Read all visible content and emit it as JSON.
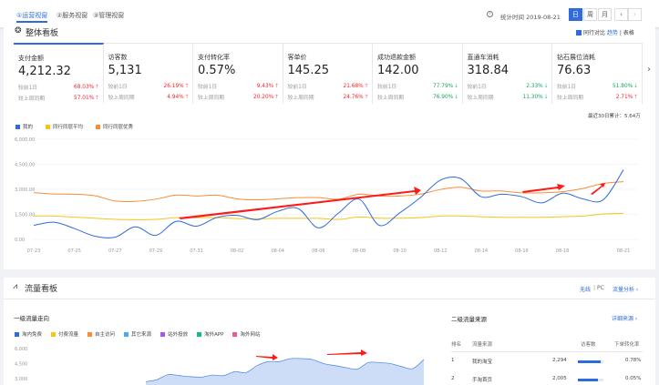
{
  "header": {
    "tabs": [
      "①运营视窗",
      "②服务视窗",
      "③管理视窗"
    ],
    "help_icon": "question-circle-icon",
    "stat_time_label": "统计时间 2019-08-21",
    "period_buttons": [
      "日",
      "周",
      "月"
    ],
    "prev": "‹",
    "next": "›"
  },
  "overview": {
    "title": "整体看板",
    "compare_label": "同行对比",
    "view_trend": "趋势",
    "view_table": "表格",
    "compare_day": "较前1日",
    "compare_week": "较上周同期",
    "metrics": [
      {
        "label": "支付金额",
        "value": "4,212.32",
        "day": "68.03%",
        "day_dir": "up",
        "week": "57.01%",
        "week_dir": "up"
      },
      {
        "label": "访客数",
        "value": "5,131",
        "day": "26.19%",
        "day_dir": "up",
        "week": "4.94%",
        "week_dir": "up"
      },
      {
        "label": "支付转化率",
        "value": "0.57%",
        "day": "9.43%",
        "day_dir": "up",
        "week": "20.20%",
        "week_dir": "up"
      },
      {
        "label": "客单价",
        "value": "145.25",
        "day": "21.68%",
        "day_dir": "up",
        "week": "24.76%",
        "week_dir": "up"
      },
      {
        "label": "成功退款金额",
        "value": "142.00",
        "day": "77.79%",
        "day_dir": "down",
        "week": "76.90%",
        "week_dir": "down"
      },
      {
        "label": "直通车消耗",
        "value": "318.84",
        "day": "2.33%",
        "day_dir": "down",
        "week": "11.30%",
        "week_dir": "down"
      },
      {
        "label": "钻石展位消耗",
        "value": "76.63",
        "day": "51.80%",
        "day_dir": "down",
        "week": "2.71%",
        "week_dir": "up"
      }
    ],
    "total_30d": "最近30日累计：5.64万"
  },
  "colors": {
    "accent": "#2f6bdc",
    "up": "#f5222d",
    "down": "#19a55a",
    "mine": "#2f6bdc",
    "avg": "#f5c518",
    "top": "#fa8c35",
    "annotation": "#ff1a1a"
  },
  "chart_data": [
    {
      "type": "line",
      "legend_placement": "top-left",
      "grid": true,
      "ylim": [
        0,
        6000
      ],
      "yticks": [
        "0.00",
        "1,500.00",
        "3,000.00",
        "4,500.00",
        "6,000.00"
      ],
      "ytick_values": [
        0,
        1500,
        3000,
        4500,
        6000
      ],
      "x": [
        "07-23",
        "07-24",
        "07-25",
        "07-26",
        "07-27",
        "07-28",
        "07-29",
        "07-30",
        "07-31",
        "08-01",
        "08-02",
        "08-03",
        "08-04",
        "08-05",
        "08-06",
        "08-07",
        "08-08",
        "08-09",
        "08-10",
        "08-11",
        "08-12",
        "08-13",
        "08-14",
        "08-15",
        "08-16",
        "08-17",
        "08-18",
        "08-19",
        "08-20",
        "08-21"
      ],
      "xticks": [
        "07-23",
        "07-25",
        "07-27",
        "07-29",
        "07-31",
        "08-02",
        "08-04",
        "08-06",
        "08-08",
        "08-10",
        "08-12",
        "08-14",
        "08-16",
        "08-18",
        "08-21"
      ],
      "series": [
        {
          "name": "我的",
          "color": "#2f6bdc",
          "values": [
            840,
            1030,
            650,
            190,
            130,
            750,
            240,
            1080,
            790,
            1310,
            1440,
            1180,
            1680,
            1850,
            690,
            1590,
            2410,
            840,
            1590,
            2490,
            3550,
            3640,
            2560,
            2710,
            2560,
            2190,
            2770,
            2430,
            2370,
            4170
          ]
        },
        {
          "name": "同行同层平均",
          "color": "#f5c518",
          "values": [
            1400,
            1400,
            1330,
            1270,
            1200,
            1180,
            1200,
            1300,
            1300,
            1300,
            1250,
            1240,
            1260,
            1260,
            1260,
            1200,
            1340,
            1270,
            1270,
            1300,
            1400,
            1400,
            1360,
            1320,
            1320,
            1320,
            1360,
            1400,
            1520,
            1560
          ]
        },
        {
          "name": "同行同层优秀",
          "color": "#fa8c35",
          "values": [
            2800,
            2720,
            2710,
            2620,
            2300,
            2280,
            2410,
            2650,
            2600,
            2650,
            2430,
            2370,
            2430,
            2500,
            2500,
            2410,
            2710,
            2600,
            2600,
            2710,
            2990,
            3120,
            2900,
            2900,
            2790,
            2790,
            2860,
            3050,
            3350,
            3460
          ]
        }
      ]
    },
    {
      "type": "area",
      "legend_placement": "top-left",
      "yticks": [
        "3,000",
        "4,500",
        "6,000"
      ],
      "ytick_values": [
        3000,
        4500,
        6000
      ],
      "legend": [
        {
          "name": "淘内免费",
          "color": "#2f6bdc"
        },
        {
          "name": "付费流量",
          "color": "#f5c518"
        },
        {
          "name": "自主访问",
          "color": "#fa8c35"
        },
        {
          "name": "其它来源",
          "color": "#4aa8f5"
        },
        {
          "name": "站外投放",
          "color": "#a855e0"
        },
        {
          "name": "淘外APP",
          "color": "#17b890"
        },
        {
          "name": "淘外网站",
          "color": "#f0569a"
        }
      ],
      "series": [
        {
          "name": "淘内免费",
          "color": "#2f6bdc",
          "values": [
            2700,
            2900,
            3400,
            3300,
            3200,
            3150,
            3350,
            3300,
            3700,
            3600,
            4300,
            4700,
            4700,
            5000,
            5000,
            4900,
            4500,
            4300,
            4100,
            3950,
            4600,
            4600,
            4500,
            4200,
            4000,
            4900
          ]
        }
      ]
    }
  ],
  "traffic": {
    "title": "流量看板",
    "wireless": "无线",
    "pc": "PC",
    "analysis_link": "流量分析 ›",
    "first_level_title": "一级流量走向",
    "second_level_title": "二级流量来源",
    "detail_link": "详细来源 ›",
    "table": {
      "headers": [
        "排名",
        "流量来源",
        "访客数",
        "下单转化率"
      ],
      "rows": [
        {
          "rank": "1",
          "source": "我的淘宝",
          "visitors": "2,294",
          "share": 1.0,
          "conversion": "0.78%"
        },
        {
          "rank": "2",
          "source": "手淘首页",
          "visitors": "2,005",
          "share": 0.87,
          "conversion": "0.05%"
        }
      ]
    }
  }
}
